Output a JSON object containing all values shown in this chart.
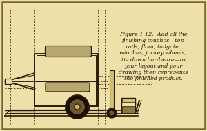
{
  "bg_color": "#ede0a8",
  "border_color": "#7a6535",
  "line_color": "#2a1a05",
  "dash_color": "#2a1a05",
  "title_text": "Figure 1.12.  Add all the\nfinishing touches—top\nrails, floor, tailgate,\nwinches, jockey wheels,\ntie down hardware—to\nyour layout and your\ndrawing then represents\nthe finished product.",
  "title_fontsize": 5.8,
  "rail_fill": "#b8a870",
  "dark_fill": "#2a1a05",
  "mid_fill": "#6a5530",
  "wheel_fill": "#1a1005"
}
